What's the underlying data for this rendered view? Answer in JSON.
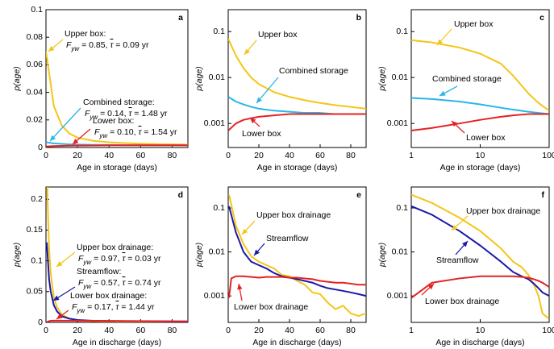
{
  "chart_data": [
    {
      "type": "line",
      "letter": "a",
      "xlabel": "Age in storage (days)",
      "ylabel": "p(age)",
      "xscale": "linear",
      "yscale": "linear",
      "xlim": [
        0,
        90
      ],
      "ylim": [
        0,
        0.1
      ],
      "xticks": [
        0,
        20,
        40,
        60,
        80
      ],
      "yticks": [
        0,
        0.02,
        0.04,
        0.06,
        0.08,
        0.1
      ],
      "series": [
        {
          "color": "#f5c518",
          "x": [
            0,
            5,
            10,
            15,
            20,
            30,
            40,
            50,
            60,
            70,
            80,
            90
          ],
          "values": [
            0.07,
            0.03,
            0.016,
            0.01,
            0.0072,
            0.0048,
            0.0038,
            0.0032,
            0.0028,
            0.0025,
            0.0023,
            0.0021
          ]
        },
        {
          "color": "#29b6e8",
          "x": [
            0,
            5,
            10,
            15,
            20,
            30,
            40,
            50,
            60,
            70,
            80,
            90
          ],
          "values": [
            0.0038,
            0.003,
            0.0026,
            0.0023,
            0.0021,
            0.0019,
            0.0018,
            0.0017,
            0.0017,
            0.0016,
            0.0016,
            0.0016
          ]
        },
        {
          "color": "#e52222",
          "x": [
            0,
            5,
            10,
            15,
            20,
            30,
            40,
            50,
            60,
            70,
            80,
            90
          ],
          "values": [
            0.0007,
            0.001,
            0.0012,
            0.0013,
            0.0014,
            0.0015,
            0.0016,
            0.0016,
            0.0016,
            0.0016,
            0.0016,
            0.0016
          ]
        }
      ],
      "annotations": [
        {
          "color": "#f5c518",
          "lines": [
            [
              {
                "t": "Upper box:"
              }
            ],
            [
              {
                "t": "F",
                "style": "italic"
              },
              {
                "t": "yw",
                "style": "sub"
              },
              {
                "t": " = 0.85,  "
              },
              {
                "t": "τ",
                "style": "bar"
              },
              {
                "t": " = 0.09 yr"
              }
            ]
          ]
        },
        {
          "color": "#29b6e8",
          "lines": [
            [
              {
                "t": "Combined storage:"
              }
            ],
            [
              {
                "t": "F",
                "style": "italic"
              },
              {
                "t": "yw",
                "style": "sub"
              },
              {
                "t": " = 0.14,  "
              },
              {
                "t": "τ",
                "style": "bar"
              },
              {
                "t": " = 1.48 yr"
              }
            ]
          ]
        },
        {
          "color": "#e52222",
          "lines": [
            [
              {
                "t": "Lower box:"
              }
            ],
            [
              {
                "t": "F",
                "style": "italic"
              },
              {
                "t": "yw",
                "style": "sub"
              },
              {
                "t": " = 0.10,  "
              },
              {
                "t": "τ",
                "style": "bar"
              },
              {
                "t": " = 1.54 yr"
              }
            ]
          ]
        }
      ]
    },
    {
      "type": "line",
      "letter": "b",
      "xlabel": "Age in storage (days)",
      "ylabel": "p(age)",
      "xscale": "linear",
      "yscale": "log",
      "xlim": [
        0,
        90
      ],
      "ylim": [
        0.0003,
        0.3
      ],
      "xticks": [
        0,
        20,
        40,
        60,
        80
      ],
      "yticks": [
        0.001,
        0.01,
        0.1
      ],
      "series": [
        {
          "color": "#f5c518",
          "x": [
            0,
            5,
            10,
            15,
            20,
            30,
            40,
            50,
            60,
            70,
            80,
            90
          ],
          "values": [
            0.07,
            0.03,
            0.016,
            0.01,
            0.0072,
            0.0048,
            0.0038,
            0.0032,
            0.0028,
            0.0025,
            0.0023,
            0.0021
          ]
        },
        {
          "color": "#29b6e8",
          "x": [
            0,
            5,
            10,
            15,
            20,
            30,
            40,
            50,
            60,
            70,
            80,
            90
          ],
          "values": [
            0.0038,
            0.003,
            0.0026,
            0.0023,
            0.0021,
            0.0019,
            0.0018,
            0.0017,
            0.0017,
            0.0016,
            0.0016,
            0.0016
          ]
        },
        {
          "color": "#e52222",
          "x": [
            0,
            5,
            10,
            15,
            20,
            30,
            40,
            50,
            60,
            70,
            80,
            90
          ],
          "values": [
            0.0007,
            0.001,
            0.0012,
            0.0013,
            0.0014,
            0.0015,
            0.0016,
            0.0016,
            0.0016,
            0.0016,
            0.0016,
            0.0016
          ]
        }
      ],
      "annotations": [
        {
          "color": "#f5c518",
          "lines": [
            [
              {
                "t": "Upper box"
              }
            ]
          ]
        },
        {
          "color": "#29b6e8",
          "lines": [
            [
              {
                "t": "Combined storage"
              }
            ]
          ]
        },
        {
          "color": "#e52222",
          "lines": [
            [
              {
                "t": "Lower box"
              }
            ]
          ]
        }
      ]
    },
    {
      "type": "line",
      "letter": "c",
      "xlabel": "Age in storage (days)",
      "ylabel": "p(age)",
      "xscale": "log",
      "yscale": "log",
      "xlim": [
        1,
        100
      ],
      "ylim": [
        0.0003,
        0.3
      ],
      "xticks": [
        1,
        10,
        100
      ],
      "yticks": [
        0.001,
        0.01,
        0.1
      ],
      "series": [
        {
          "color": "#f5c518",
          "x": [
            1,
            2,
            5,
            10,
            20,
            30,
            50,
            70,
            100
          ],
          "values": [
            0.065,
            0.058,
            0.045,
            0.033,
            0.02,
            0.011,
            0.0045,
            0.0028,
            0.0019
          ]
        },
        {
          "color": "#29b6e8",
          "x": [
            1,
            2,
            5,
            10,
            20,
            30,
            50,
            70,
            100
          ],
          "values": [
            0.0036,
            0.0034,
            0.003,
            0.0026,
            0.0022,
            0.002,
            0.0018,
            0.0017,
            0.0016
          ]
        },
        {
          "color": "#e52222",
          "x": [
            1,
            2,
            5,
            10,
            20,
            30,
            50,
            70,
            100
          ],
          "values": [
            0.0007,
            0.0008,
            0.001,
            0.0012,
            0.0014,
            0.0015,
            0.0016,
            0.0016,
            0.0016
          ]
        }
      ],
      "annotations": [
        {
          "color": "#f5c518",
          "lines": [
            [
              {
                "t": "Upper box"
              }
            ]
          ]
        },
        {
          "color": "#29b6e8",
          "lines": [
            [
              {
                "t": "Combined storage"
              }
            ]
          ]
        },
        {
          "color": "#e52222",
          "lines": [
            [
              {
                "t": "Lower box"
              }
            ]
          ]
        }
      ]
    },
    {
      "type": "line",
      "letter": "d",
      "xlabel": "Age in discharge (days)",
      "ylabel": "p(age)",
      "xscale": "linear",
      "yscale": "linear",
      "xlim": [
        0,
        90
      ],
      "ylim": [
        0,
        0.22
      ],
      "xticks": [
        0,
        20,
        40,
        60,
        80
      ],
      "yticks": [
        0,
        0.05,
        0.1,
        0.15,
        0.2
      ],
      "series": [
        {
          "color": "#f5c518",
          "x": [
            0.5,
            1,
            2,
            3,
            5,
            7,
            10,
            15,
            20,
            30,
            40,
            60,
            90
          ],
          "values": [
            0.3,
            0.2,
            0.12,
            0.08,
            0.04,
            0.025,
            0.013,
            0.006,
            0.004,
            0.002,
            0.0015,
            0.0008,
            0.0004
          ]
        },
        {
          "color": "#1a1aa8",
          "x": [
            0.5,
            1,
            2,
            3,
            5,
            7,
            10,
            15,
            20,
            30,
            40,
            60,
            90
          ],
          "values": [
            0.13,
            0.11,
            0.07,
            0.05,
            0.028,
            0.018,
            0.01,
            0.006,
            0.004,
            0.0027,
            0.0022,
            0.0018,
            0.0012
          ]
        },
        {
          "color": "#e52222",
          "x": [
            0.5,
            1,
            2,
            3,
            5,
            7,
            10,
            15,
            20,
            30,
            40,
            60,
            90
          ],
          "values": [
            0.0005,
            0.001,
            0.002,
            0.0027,
            0.0028,
            0.0028,
            0.0028,
            0.0028,
            0.0027,
            0.0026,
            0.0025,
            0.0022,
            0.0018
          ]
        }
      ],
      "annotations": [
        {
          "color": "#f5c518",
          "lines": [
            [
              {
                "t": "Upper box drainage:"
              }
            ],
            [
              {
                "t": "F",
                "style": "italic"
              },
              {
                "t": "yw",
                "style": "sub"
              },
              {
                "t": " = 0.97,  "
              },
              {
                "t": "τ",
                "style": "bar"
              },
              {
                "t": " = 0.03 yr"
              }
            ]
          ]
        },
        {
          "color": "#1a1aa8",
          "lines": [
            [
              {
                "t": "Streamflow:"
              }
            ],
            [
              {
                "t": "F",
                "style": "italic"
              },
              {
                "t": "yw",
                "style": "sub"
              },
              {
                "t": " = 0.57,  "
              },
              {
                "t": "τ",
                "style": "bar"
              },
              {
                "t": " = 0.74 yr"
              }
            ]
          ]
        },
        {
          "color": "#e52222",
          "lines": [
            [
              {
                "t": "Lower box drainage:"
              }
            ],
            [
              {
                "t": "F",
                "style": "italic"
              },
              {
                "t": "yw",
                "style": "sub"
              },
              {
                "t": " = 0.17,  "
              },
              {
                "t": "τ",
                "style": "bar"
              },
              {
                "t": " = 1.44 yr"
              }
            ]
          ]
        }
      ]
    },
    {
      "type": "line",
      "letter": "e",
      "xlabel": "Age in discharge (days)",
      "ylabel": "p(age)",
      "xscale": "linear",
      "yscale": "log",
      "xlim": [
        0,
        90
      ],
      "ylim": [
        0.00025,
        0.3
      ],
      "xticks": [
        0,
        20,
        40,
        60,
        80
      ],
      "yticks": [
        0.001,
        0.01,
        0.1
      ],
      "series": [
        {
          "color": "#f5c518",
          "x": [
            0.5,
            2,
            5,
            10,
            15,
            20,
            25,
            30,
            35,
            40,
            45,
            50,
            55,
            60,
            65,
            70,
            75,
            80,
            85,
            90
          ],
          "values": [
            0.2,
            0.12,
            0.04,
            0.015,
            0.008,
            0.006,
            0.005,
            0.0042,
            0.003,
            0.0028,
            0.0022,
            0.0018,
            0.0012,
            0.0011,
            0.0007,
            0.0005,
            0.0006,
            0.0004,
            0.00035,
            0.0004
          ]
        },
        {
          "color": "#1a1aa8",
          "x": [
            0.5,
            2,
            5,
            10,
            15,
            20,
            25,
            30,
            35,
            40,
            45,
            50,
            55,
            60,
            65,
            70,
            75,
            80,
            85,
            90
          ],
          "values": [
            0.11,
            0.07,
            0.028,
            0.01,
            0.006,
            0.005,
            0.0042,
            0.0033,
            0.0028,
            0.0026,
            0.0024,
            0.0022,
            0.002,
            0.0017,
            0.0015,
            0.0014,
            0.0013,
            0.0012,
            0.0011,
            0.001
          ]
        },
        {
          "color": "#e52222",
          "x": [
            0.5,
            2,
            5,
            10,
            15,
            20,
            25,
            30,
            35,
            40,
            45,
            50,
            55,
            60,
            65,
            70,
            75,
            80,
            85,
            90
          ],
          "values": [
            0.0009,
            0.0025,
            0.0028,
            0.0028,
            0.0027,
            0.0026,
            0.0027,
            0.0027,
            0.0027,
            0.0026,
            0.0026,
            0.0025,
            0.0024,
            0.0022,
            0.0021,
            0.002,
            0.002,
            0.0019,
            0.0018,
            0.0018
          ]
        }
      ],
      "annotations": [
        {
          "color": "#f5c518",
          "lines": [
            [
              {
                "t": "Upper box drainage"
              }
            ]
          ]
        },
        {
          "color": "#1a1aa8",
          "lines": [
            [
              {
                "t": "Streamflow"
              }
            ]
          ]
        },
        {
          "color": "#e52222",
          "lines": [
            [
              {
                "t": "Lower box drainage"
              }
            ]
          ]
        }
      ]
    },
    {
      "type": "line",
      "letter": "f",
      "xlabel": "Age in discharge (days)",
      "ylabel": "p(age)",
      "xscale": "log",
      "yscale": "log",
      "xlim": [
        1,
        100
      ],
      "ylim": [
        0.00025,
        0.3
      ],
      "xticks": [
        1,
        10,
        100
      ],
      "yticks": [
        0.001,
        0.01,
        0.1
      ],
      "series": [
        {
          "color": "#f5c518",
          "x": [
            1,
            2,
            5,
            10,
            20,
            30,
            40,
            50,
            60,
            70,
            80,
            100
          ],
          "values": [
            0.2,
            0.13,
            0.06,
            0.03,
            0.012,
            0.006,
            0.0045,
            0.003,
            0.0018,
            0.001,
            0.0004,
            0.0003
          ]
        },
        {
          "color": "#1a1aa8",
          "x": [
            1,
            2,
            5,
            10,
            20,
            30,
            40,
            50,
            60,
            70,
            80,
            100
          ],
          "values": [
            0.11,
            0.07,
            0.03,
            0.014,
            0.006,
            0.0035,
            0.0028,
            0.0024,
            0.0019,
            0.0015,
            0.0012,
            0.001
          ]
        },
        {
          "color": "#e52222",
          "x": [
            1,
            2,
            5,
            10,
            20,
            30,
            40,
            50,
            60,
            70,
            80,
            100
          ],
          "values": [
            0.0009,
            0.002,
            0.0025,
            0.0028,
            0.0028,
            0.0028,
            0.0027,
            0.0026,
            0.0024,
            0.0022,
            0.002,
            0.0016
          ]
        }
      ],
      "annotations": [
        {
          "color": "#f5c518",
          "lines": [
            [
              {
                "t": "Upper box drainage"
              }
            ]
          ]
        },
        {
          "color": "#1a1aa8",
          "lines": [
            [
              {
                "t": "Streamflow"
              }
            ]
          ]
        },
        {
          "color": "#e52222",
          "lines": [
            [
              {
                "t": "Lower box drainage"
              }
            ]
          ]
        }
      ]
    }
  ]
}
